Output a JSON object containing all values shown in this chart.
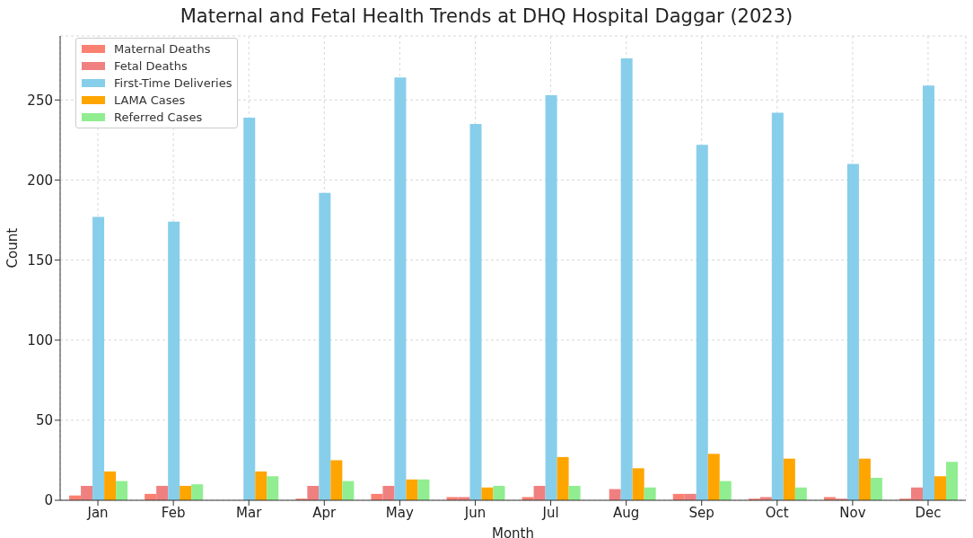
{
  "chart_data": {
    "type": "bar",
    "title": "Maternal and Fetal Health Trends at DHQ Hospital Daggar (2023)",
    "xlabel": "Month",
    "ylabel": "Count",
    "categories": [
      "Jan",
      "Feb",
      "Mar",
      "Apr",
      "May",
      "Jun",
      "Jul",
      "Aug",
      "Sep",
      "Oct",
      "Nov",
      "Dec"
    ],
    "series": [
      {
        "name": "Maternal Deaths",
        "color": "#fa8072",
        "values": [
          3,
          4,
          0,
          1,
          4,
          2,
          2,
          0,
          4,
          1,
          2,
          1
        ]
      },
      {
        "name": "Fetal Deaths",
        "color": "#f08080",
        "values": [
          9,
          9,
          0,
          9,
          9,
          2,
          9,
          7,
          4,
          2,
          1,
          8
        ]
      },
      {
        "name": "First-Time Deliveries",
        "color": "#87ceeb",
        "values": [
          177,
          174,
          239,
          192,
          264,
          235,
          253,
          276,
          222,
          242,
          210,
          259
        ]
      },
      {
        "name": "LAMA Cases",
        "color": "#ffa500",
        "values": [
          18,
          9,
          18,
          25,
          13,
          8,
          27,
          20,
          29,
          26,
          26,
          15
        ]
      },
      {
        "name": "Referred Cases",
        "color": "#90ee90",
        "values": [
          12,
          10,
          15,
          12,
          13,
          9,
          9,
          8,
          12,
          8,
          14,
          24
        ]
      }
    ],
    "ylim": [
      0,
      290
    ],
    "yticks": [
      0,
      50,
      100,
      150,
      200,
      250
    ],
    "grid": true,
    "legend": "top left"
  }
}
